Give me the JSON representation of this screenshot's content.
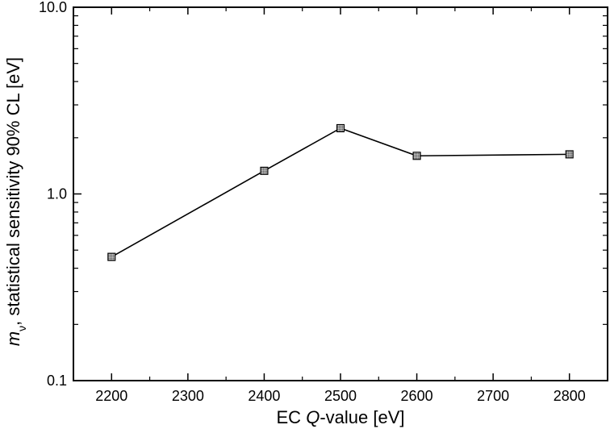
{
  "chart_data": {
    "type": "line",
    "x": [
      2200,
      2400,
      2500,
      2600,
      2800
    ],
    "series": [
      {
        "values": [
          0.46,
          1.33,
          2.25,
          1.6,
          1.63
        ]
      }
    ],
    "xlabel": {
      "prefix": "EC ",
      "italic": "Q",
      "suffix": "-value [eV]"
    },
    "ylabel": {
      "italic": "m",
      "subscript": "ν",
      "suffix": ", statistical sensitivity 90% CL [eV]"
    },
    "xlim": [
      2150,
      2850
    ],
    "ylim": [
      0.1,
      10
    ],
    "yscale": "log",
    "x_ticks": [
      2200,
      2300,
      2400,
      2500,
      2600,
      2700,
      2800
    ],
    "x_tick_labels": [
      "2200",
      "2300",
      "2400",
      "2500",
      "2600",
      "2700",
      "2800"
    ],
    "y_ticks": [
      0.1,
      1,
      10
    ],
    "y_tick_labels": [
      "0.1",
      "1.0",
      "10.0"
    ],
    "grid": false,
    "colors": {
      "line": "#000000",
      "marker_fill": "#8c8c8c",
      "marker_stroke": "#000000"
    }
  }
}
